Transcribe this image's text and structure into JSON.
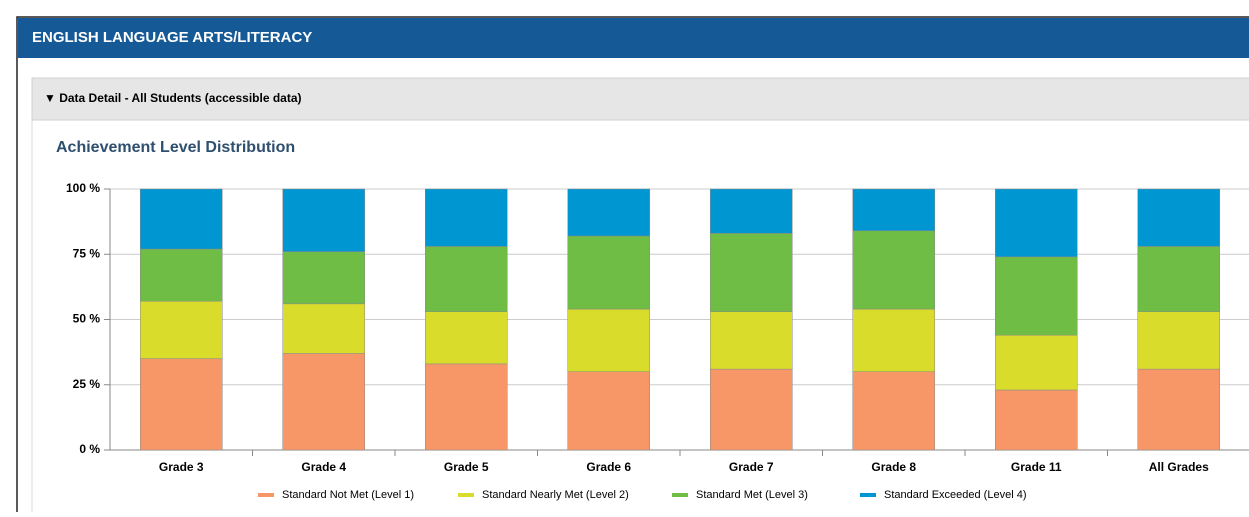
{
  "header": {
    "title": "ENGLISH LANGUAGE ARTS/LITERACY"
  },
  "panel": {
    "title": "▼ Data Detail - All Students (accessible data)"
  },
  "chart_data": {
    "type": "stacked-bar",
    "title": "Achievement Level Distribution",
    "categories": [
      "Grade 3",
      "Grade 4",
      "Grade 5",
      "Grade 6",
      "Grade 7",
      "Grade 8",
      "Grade 11",
      "All Grades"
    ],
    "series": [
      {
        "name": "Standard Not Met (Level 1)",
        "color": "#f79767",
        "values": [
          35,
          37,
          33,
          30,
          31,
          30,
          23,
          31
        ]
      },
      {
        "name": "Standard Nearly Met (Level 2)",
        "color": "#d9dc2a",
        "values": [
          22,
          19,
          20,
          24,
          22,
          24,
          21,
          22
        ]
      },
      {
        "name": "Standard Met (Level 3)",
        "color": "#6fbd45",
        "values": [
          20,
          20,
          25,
          28,
          30,
          30,
          30,
          25
        ]
      },
      {
        "name": "Standard Exceeded (Level 4)",
        "color": "#0096d2",
        "values": [
          23,
          24,
          22,
          18,
          17,
          16,
          26,
          22
        ]
      }
    ],
    "ylim": [
      0,
      100
    ],
    "yticks": [
      {
        "value": 0,
        "label": "0 %"
      },
      {
        "value": 25,
        "label": "25 %"
      },
      {
        "value": 50,
        "label": "50 %"
      },
      {
        "value": 75,
        "label": "75 %"
      },
      {
        "value": 100,
        "label": "100 %"
      }
    ],
    "grid": true,
    "legend": "bottom"
  }
}
